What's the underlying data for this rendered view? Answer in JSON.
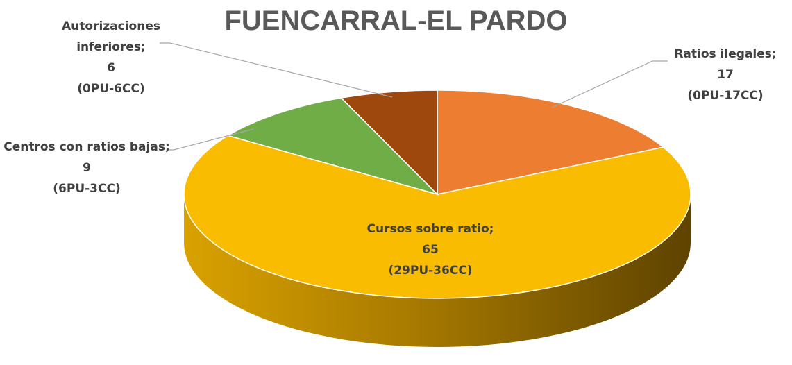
{
  "chart_data": {
    "type": "pie",
    "title": "FUENCARRAL-EL PARDO",
    "categories": [
      "Ratios ilegales;",
      "Cursos sobre ratio;",
      "Centros con ratios bajas;",
      "Autorizaciones inferiores;"
    ],
    "values": [
      17,
      65,
      9,
      6
    ],
    "details": [
      "(0PU-17CC)",
      "(29PU-36CC)",
      "(6PU-3CC)",
      "(0PU-6CC)"
    ],
    "colors": [
      "#ED7D31",
      "#F9BC00",
      "#70AD47",
      "#9E480E"
    ]
  }
}
